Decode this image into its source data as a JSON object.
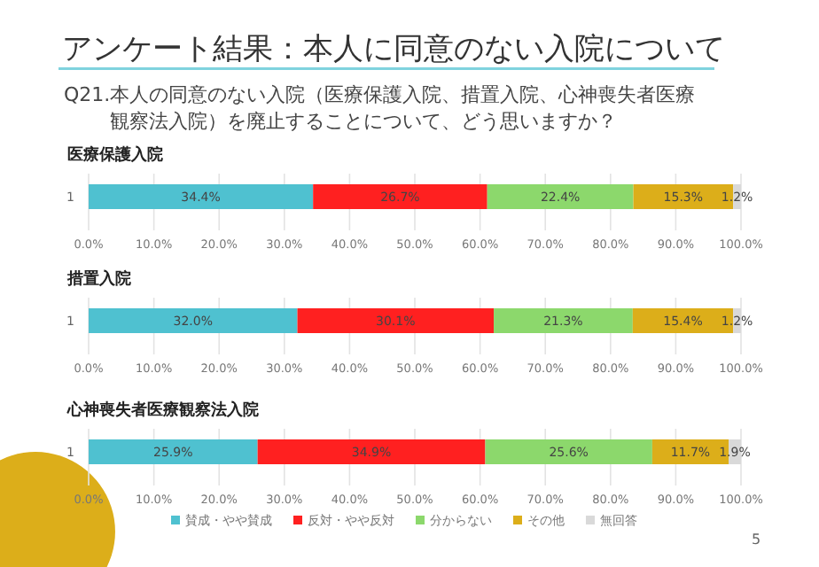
{
  "chart_data": [
    {
      "type": "other",
      "title": "アンケート結果：本人に同意のない入院について",
      "subtitle": "Q21.本人の同意のない入院（医療保護入院、措置入院、心神喪失者医療観察法入院）を廃止することについて、どう思いますか？",
      "annotations": [
        "5"
      ]
    },
    {
      "type": "bar",
      "orientation": "horizontal",
      "stacked": true,
      "title": "医療保護入院",
      "categories": [
        "1"
      ],
      "xlim": [
        0,
        100
      ],
      "xticks": [
        {
          "value": 0,
          "label": "0.0%"
        },
        {
          "value": 10,
          "label": "10.0%"
        },
        {
          "value": 20,
          "label": "20.0%"
        },
        {
          "value": 30,
          "label": "30.0%"
        },
        {
          "value": 40,
          "label": "40.0%"
        },
        {
          "value": 50,
          "label": "50.0%"
        },
        {
          "value": 60,
          "label": "60.0%"
        },
        {
          "value": 70,
          "label": "70.0%"
        },
        {
          "value": 80,
          "label": "80.0%"
        },
        {
          "value": 90,
          "label": "90.0%"
        },
        {
          "value": 100,
          "label": "100.0%"
        }
      ],
      "grid": "x",
      "legend": false,
      "series": [
        {
          "color": "#4fc1d0",
          "values": [
            34.4
          ],
          "value_labels": [
            "34.4%"
          ]
        },
        {
          "color": "#ff2020",
          "values": [
            26.7
          ],
          "value_labels": [
            "26.7%"
          ]
        },
        {
          "color": "#8cd86c",
          "values": [
            22.4
          ],
          "value_labels": [
            "22.4%"
          ]
        },
        {
          "color": "#dcae1a",
          "values": [
            15.3
          ],
          "value_labels": [
            "15.3%"
          ]
        },
        {
          "color": "#d9d9d9",
          "values": [
            1.2
          ],
          "value_labels": [
            "1.2%"
          ]
        }
      ]
    },
    {
      "type": "bar",
      "orientation": "horizontal",
      "stacked": true,
      "title": "措置入院",
      "categories": [
        "1"
      ],
      "xlim": [
        0,
        100
      ],
      "xticks": [
        {
          "value": 0,
          "label": "0.0%"
        },
        {
          "value": 10,
          "label": "10.0%"
        },
        {
          "value": 20,
          "label": "20.0%"
        },
        {
          "value": 30,
          "label": "30.0%"
        },
        {
          "value": 40,
          "label": "40.0%"
        },
        {
          "value": 50,
          "label": "50.0%"
        },
        {
          "value": 60,
          "label": "60.0%"
        },
        {
          "value": 70,
          "label": "70.0%"
        },
        {
          "value": 80,
          "label": "80.0%"
        },
        {
          "value": 90,
          "label": "90.0%"
        },
        {
          "value": 100,
          "label": "100.0%"
        }
      ],
      "grid": "x",
      "legend": false,
      "series": [
        {
          "color": "#4fc1d0",
          "values": [
            32.0
          ],
          "value_labels": [
            "32.0%"
          ]
        },
        {
          "color": "#ff2020",
          "values": [
            30.1
          ],
          "value_labels": [
            "30.1%"
          ]
        },
        {
          "color": "#8cd86c",
          "values": [
            21.3
          ],
          "value_labels": [
            "21.3%"
          ]
        },
        {
          "color": "#dcae1a",
          "values": [
            15.4
          ],
          "value_labels": [
            "15.4%"
          ]
        },
        {
          "color": "#d9d9d9",
          "values": [
            1.2
          ],
          "value_labels": [
            "1.2%"
          ]
        }
      ]
    },
    {
      "type": "bar",
      "orientation": "horizontal",
      "stacked": true,
      "title": "心神喪失者医療観察法入院",
      "categories": [
        "1"
      ],
      "xlim": [
        0,
        100
      ],
      "xticks": [
        {
          "value": 0,
          "label": "0.0%"
        },
        {
          "value": 10,
          "label": "10.0%"
        },
        {
          "value": 20,
          "label": "20.0%"
        },
        {
          "value": 30,
          "label": "30.0%"
        },
        {
          "value": 40,
          "label": "40.0%"
        },
        {
          "value": 50,
          "label": "50.0%"
        },
        {
          "value": 60,
          "label": "60.0%"
        },
        {
          "value": 70,
          "label": "70.0%"
        },
        {
          "value": 80,
          "label": "80.0%"
        },
        {
          "value": 90,
          "label": "90.0%"
        },
        {
          "value": 100,
          "label": "100.0%"
        }
      ],
      "grid": "x",
      "legend": "bottom",
      "series": [
        {
          "name": "賛成・やや賛成",
          "color": "#4fc1d0",
          "values": [
            25.9
          ],
          "value_labels": [
            "25.9%"
          ]
        },
        {
          "name": "反対・やや反対",
          "color": "#ff2020",
          "values": [
            34.9
          ],
          "value_labels": [
            "34.9%"
          ]
        },
        {
          "name": "分からない",
          "color": "#8cd86c",
          "values": [
            25.6
          ],
          "value_labels": [
            "25.6%"
          ]
        },
        {
          "name": "その他",
          "color": "#dcae1a",
          "values": [
            11.7
          ],
          "value_labels": [
            "11.7%"
          ]
        },
        {
          "name": "無回答",
          "color": "#d9d9d9",
          "values": [
            1.9
          ],
          "value_labels": [
            "1.9%"
          ]
        }
      ]
    }
  ]
}
